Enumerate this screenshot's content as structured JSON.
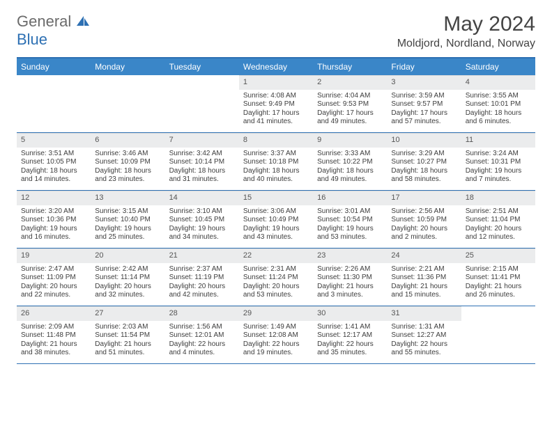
{
  "logo": {
    "word1": "General",
    "word2": "Blue"
  },
  "title": "May 2024",
  "location": "Moldjord, Nordland, Norway",
  "colors": {
    "header_bg": "#3a86c8",
    "rule": "#2d70b3",
    "daynum_bg": "#ebeced",
    "text": "#3d3d3d",
    "title": "#444444"
  },
  "day_headers": [
    "Sunday",
    "Monday",
    "Tuesday",
    "Wednesday",
    "Thursday",
    "Friday",
    "Saturday"
  ],
  "weeks": [
    [
      {
        "n": "",
        "sr": "",
        "ss": "",
        "dl": ""
      },
      {
        "n": "",
        "sr": "",
        "ss": "",
        "dl": ""
      },
      {
        "n": "",
        "sr": "",
        "ss": "",
        "dl": ""
      },
      {
        "n": "1",
        "sr": "Sunrise: 4:08 AM",
        "ss": "Sunset: 9:49 PM",
        "dl": "Daylight: 17 hours and 41 minutes."
      },
      {
        "n": "2",
        "sr": "Sunrise: 4:04 AM",
        "ss": "Sunset: 9:53 PM",
        "dl": "Daylight: 17 hours and 49 minutes."
      },
      {
        "n": "3",
        "sr": "Sunrise: 3:59 AM",
        "ss": "Sunset: 9:57 PM",
        "dl": "Daylight: 17 hours and 57 minutes."
      },
      {
        "n": "4",
        "sr": "Sunrise: 3:55 AM",
        "ss": "Sunset: 10:01 PM",
        "dl": "Daylight: 18 hours and 6 minutes."
      }
    ],
    [
      {
        "n": "5",
        "sr": "Sunrise: 3:51 AM",
        "ss": "Sunset: 10:05 PM",
        "dl": "Daylight: 18 hours and 14 minutes."
      },
      {
        "n": "6",
        "sr": "Sunrise: 3:46 AM",
        "ss": "Sunset: 10:09 PM",
        "dl": "Daylight: 18 hours and 23 minutes."
      },
      {
        "n": "7",
        "sr": "Sunrise: 3:42 AM",
        "ss": "Sunset: 10:14 PM",
        "dl": "Daylight: 18 hours and 31 minutes."
      },
      {
        "n": "8",
        "sr": "Sunrise: 3:37 AM",
        "ss": "Sunset: 10:18 PM",
        "dl": "Daylight: 18 hours and 40 minutes."
      },
      {
        "n": "9",
        "sr": "Sunrise: 3:33 AM",
        "ss": "Sunset: 10:22 PM",
        "dl": "Daylight: 18 hours and 49 minutes."
      },
      {
        "n": "10",
        "sr": "Sunrise: 3:29 AM",
        "ss": "Sunset: 10:27 PM",
        "dl": "Daylight: 18 hours and 58 minutes."
      },
      {
        "n": "11",
        "sr": "Sunrise: 3:24 AM",
        "ss": "Sunset: 10:31 PM",
        "dl": "Daylight: 19 hours and 7 minutes."
      }
    ],
    [
      {
        "n": "12",
        "sr": "Sunrise: 3:20 AM",
        "ss": "Sunset: 10:36 PM",
        "dl": "Daylight: 19 hours and 16 minutes."
      },
      {
        "n": "13",
        "sr": "Sunrise: 3:15 AM",
        "ss": "Sunset: 10:40 PM",
        "dl": "Daylight: 19 hours and 25 minutes."
      },
      {
        "n": "14",
        "sr": "Sunrise: 3:10 AM",
        "ss": "Sunset: 10:45 PM",
        "dl": "Daylight: 19 hours and 34 minutes."
      },
      {
        "n": "15",
        "sr": "Sunrise: 3:06 AM",
        "ss": "Sunset: 10:49 PM",
        "dl": "Daylight: 19 hours and 43 minutes."
      },
      {
        "n": "16",
        "sr": "Sunrise: 3:01 AM",
        "ss": "Sunset: 10:54 PM",
        "dl": "Daylight: 19 hours and 53 minutes."
      },
      {
        "n": "17",
        "sr": "Sunrise: 2:56 AM",
        "ss": "Sunset: 10:59 PM",
        "dl": "Daylight: 20 hours and 2 minutes."
      },
      {
        "n": "18",
        "sr": "Sunrise: 2:51 AM",
        "ss": "Sunset: 11:04 PM",
        "dl": "Daylight: 20 hours and 12 minutes."
      }
    ],
    [
      {
        "n": "19",
        "sr": "Sunrise: 2:47 AM",
        "ss": "Sunset: 11:09 PM",
        "dl": "Daylight: 20 hours and 22 minutes."
      },
      {
        "n": "20",
        "sr": "Sunrise: 2:42 AM",
        "ss": "Sunset: 11:14 PM",
        "dl": "Daylight: 20 hours and 32 minutes."
      },
      {
        "n": "21",
        "sr": "Sunrise: 2:37 AM",
        "ss": "Sunset: 11:19 PM",
        "dl": "Daylight: 20 hours and 42 minutes."
      },
      {
        "n": "22",
        "sr": "Sunrise: 2:31 AM",
        "ss": "Sunset: 11:24 PM",
        "dl": "Daylight: 20 hours and 53 minutes."
      },
      {
        "n": "23",
        "sr": "Sunrise: 2:26 AM",
        "ss": "Sunset: 11:30 PM",
        "dl": "Daylight: 21 hours and 3 minutes."
      },
      {
        "n": "24",
        "sr": "Sunrise: 2:21 AM",
        "ss": "Sunset: 11:36 PM",
        "dl": "Daylight: 21 hours and 15 minutes."
      },
      {
        "n": "25",
        "sr": "Sunrise: 2:15 AM",
        "ss": "Sunset: 11:41 PM",
        "dl": "Daylight: 21 hours and 26 minutes."
      }
    ],
    [
      {
        "n": "26",
        "sr": "Sunrise: 2:09 AM",
        "ss": "Sunset: 11:48 PM",
        "dl": "Daylight: 21 hours and 38 minutes."
      },
      {
        "n": "27",
        "sr": "Sunrise: 2:03 AM",
        "ss": "Sunset: 11:54 PM",
        "dl": "Daylight: 21 hours and 51 minutes."
      },
      {
        "n": "28",
        "sr": "Sunrise: 1:56 AM",
        "ss": "Sunset: 12:01 AM",
        "dl": "Daylight: 22 hours and 4 minutes."
      },
      {
        "n": "29",
        "sr": "Sunrise: 1:49 AM",
        "ss": "Sunset: 12:08 AM",
        "dl": "Daylight: 22 hours and 19 minutes."
      },
      {
        "n": "30",
        "sr": "Sunrise: 1:41 AM",
        "ss": "Sunset: 12:17 AM",
        "dl": "Daylight: 22 hours and 35 minutes."
      },
      {
        "n": "31",
        "sr": "Sunrise: 1:31 AM",
        "ss": "Sunset: 12:27 AM",
        "dl": "Daylight: 22 hours and 55 minutes."
      },
      {
        "n": "",
        "sr": "",
        "ss": "",
        "dl": ""
      }
    ]
  ]
}
